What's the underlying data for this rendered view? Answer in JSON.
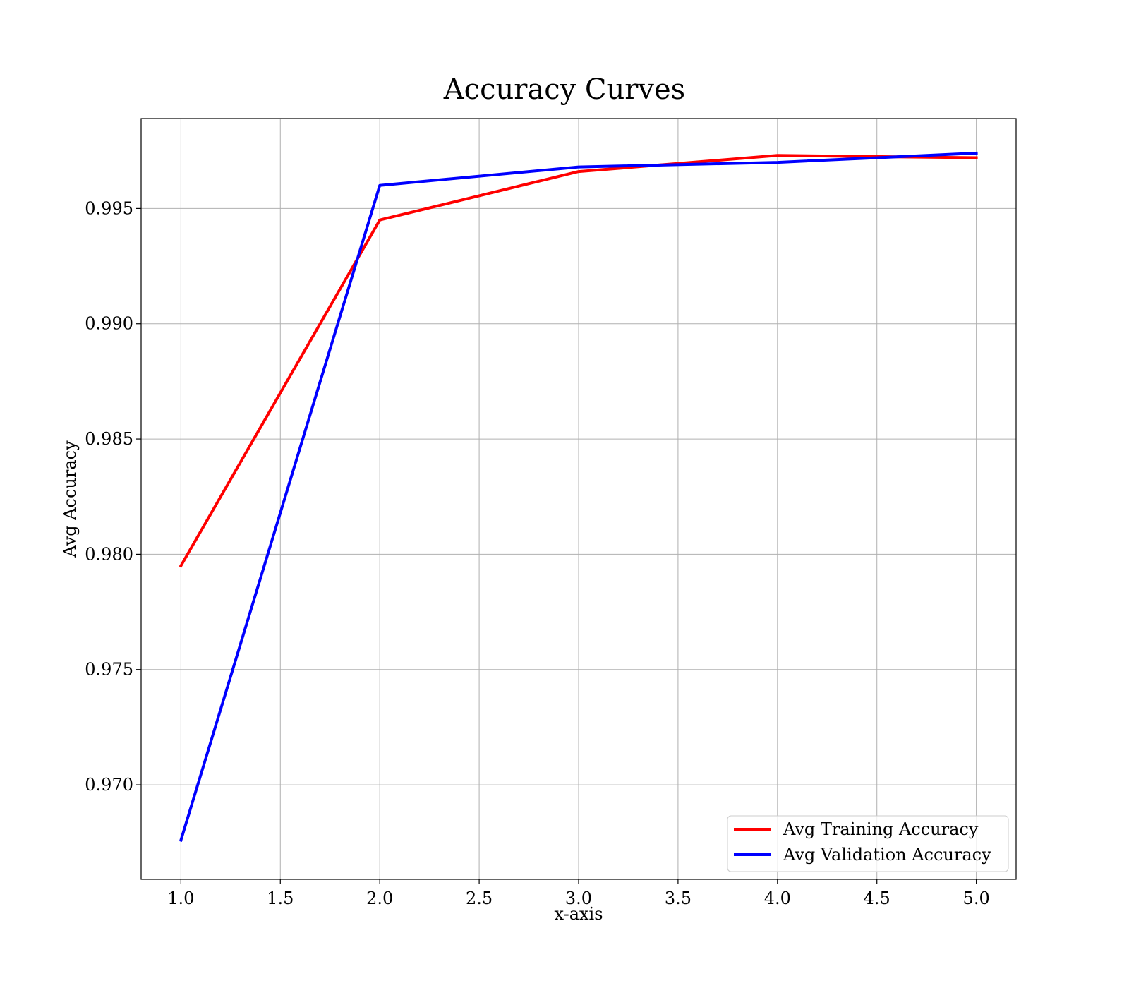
{
  "chart_data": {
    "type": "line",
    "title": "Accuracy Curves",
    "xlabel": "x-axis",
    "ylabel": "Avg Accuracy",
    "xlim": [
      0.8,
      5.2
    ],
    "ylim": [
      0.9659,
      0.9989
    ],
    "xticks": [
      1.0,
      1.5,
      2.0,
      2.5,
      3.0,
      3.5,
      4.0,
      4.5,
      5.0
    ],
    "xtick_labels": [
      "1.0",
      "1.5",
      "2.0",
      "2.5",
      "3.0",
      "3.5",
      "4.0",
      "4.5",
      "5.0"
    ],
    "yticks": [
      0.97,
      0.975,
      0.98,
      0.985,
      0.99,
      0.995
    ],
    "ytick_labels": [
      "0.970",
      "0.975",
      "0.980",
      "0.985",
      "0.990",
      "0.995"
    ],
    "grid": true,
    "legend_position": "lower-right",
    "x": [
      1,
      2,
      3,
      4,
      5
    ],
    "series": [
      {
        "name": "Avg Training Accuracy",
        "color": "#ff0000",
        "values": [
          0.9795,
          0.9945,
          0.9966,
          0.9973,
          0.9972
        ]
      },
      {
        "name": "Avg Validation Accuracy",
        "color": "#0000ff",
        "values": [
          0.9676,
          0.996,
          0.9968,
          0.997,
          0.9974
        ]
      }
    ]
  }
}
